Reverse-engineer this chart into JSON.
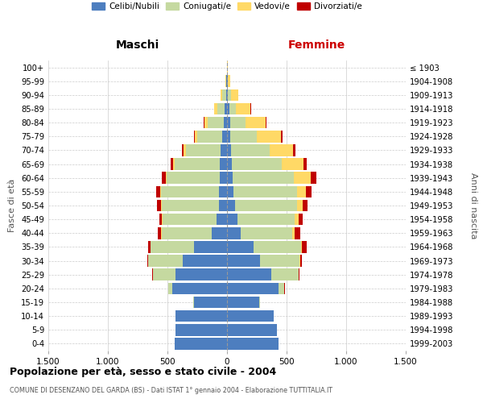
{
  "age_groups": [
    "0-4",
    "5-9",
    "10-14",
    "15-19",
    "20-24",
    "25-29",
    "30-34",
    "35-39",
    "40-44",
    "45-49",
    "50-54",
    "55-59",
    "60-64",
    "65-69",
    "70-74",
    "75-79",
    "80-84",
    "85-89",
    "90-94",
    "95-99",
    "100+"
  ],
  "birth_years": [
    "1999-2003",
    "1994-1998",
    "1989-1993",
    "1984-1988",
    "1979-1983",
    "1974-1978",
    "1969-1973",
    "1964-1968",
    "1959-1963",
    "1954-1958",
    "1949-1953",
    "1944-1948",
    "1939-1943",
    "1934-1938",
    "1929-1933",
    "1924-1928",
    "1919-1923",
    "1914-1918",
    "1909-1913",
    "1904-1908",
    "≤ 1903"
  ],
  "colors": {
    "celibi": "#4d7ebf",
    "coniugati": "#c5d9a0",
    "vedovi": "#ffd966",
    "divorziati": "#c00000"
  },
  "maschi": {
    "celibi": [
      440,
      430,
      430,
      280,
      460,
      430,
      370,
      280,
      130,
      90,
      70,
      65,
      60,
      60,
      55,
      40,
      30,
      20,
      10,
      5,
      2
    ],
    "coniugati": [
      0,
      0,
      5,
      5,
      30,
      190,
      290,
      360,
      420,
      450,
      480,
      490,
      450,
      380,
      290,
      210,
      130,
      60,
      30,
      5,
      0
    ],
    "vedovi": [
      0,
      0,
      0,
      0,
      2,
      2,
      2,
      2,
      3,
      5,
      5,
      5,
      5,
      10,
      20,
      20,
      30,
      30,
      15,
      5,
      0
    ],
    "divorziati": [
      0,
      0,
      0,
      0,
      2,
      5,
      10,
      20,
      30,
      25,
      30,
      35,
      35,
      20,
      15,
      10,
      5,
      0,
      0,
      0,
      0
    ]
  },
  "femmine": {
    "nubili": [
      430,
      420,
      390,
      270,
      430,
      370,
      280,
      220,
      115,
      85,
      65,
      55,
      50,
      40,
      35,
      30,
      25,
      20,
      10,
      5,
      2
    ],
    "coniugate": [
      0,
      0,
      5,
      10,
      50,
      230,
      330,
      400,
      430,
      480,
      520,
      530,
      510,
      420,
      320,
      220,
      130,
      55,
      25,
      5,
      0
    ],
    "vedove": [
      0,
      0,
      0,
      0,
      2,
      3,
      5,
      10,
      20,
      35,
      50,
      80,
      145,
      185,
      200,
      200,
      170,
      120,
      60,
      20,
      2
    ],
    "divorziate": [
      0,
      0,
      0,
      0,
      3,
      5,
      15,
      40,
      50,
      35,
      40,
      45,
      45,
      25,
      20,
      15,
      5,
      5,
      2,
      0,
      0
    ]
  },
  "xlim": 1500,
  "xticks": [
    -1500,
    -1000,
    -500,
    0,
    500,
    1000,
    1500
  ],
  "xticklabels": [
    "1.500",
    "1.000",
    "500",
    "0",
    "500",
    "1.000",
    "1.500"
  ],
  "title": "Popolazione per età, sesso e stato civile - 2004",
  "subtitle": "COMUNE DI DESENZANO DEL GARDA (BS) - Dati ISTAT 1° gennaio 2004 - Elaborazione TUTTITALIA.IT",
  "ylabel_left": "Fasce di età",
  "ylabel_right": "Anni di nascita",
  "label_maschi": "Maschi",
  "label_femmine": "Femmine",
  "legend_labels": [
    "Celibi/Nubili",
    "Coniugati/e",
    "Vedovi/e",
    "Divorziati/e"
  ],
  "bg_color": "#ffffff",
  "grid_color": "#cccccc"
}
